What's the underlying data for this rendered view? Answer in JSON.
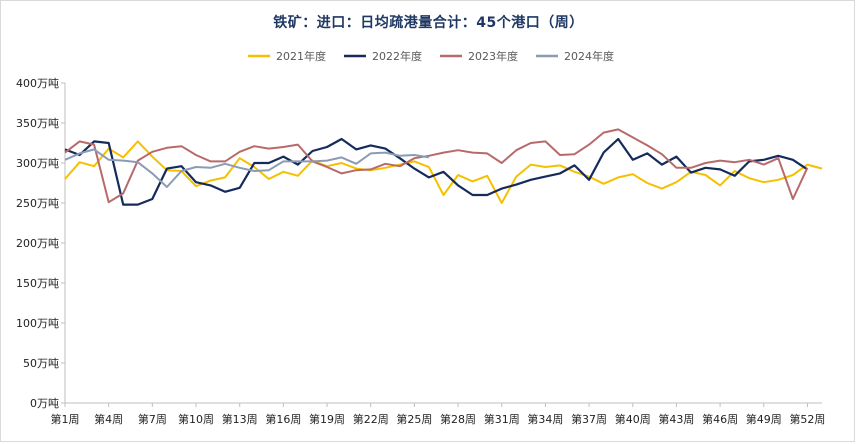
{
  "title": "铁矿：进口：日均疏港量合计：45个港口（周）",
  "colors": {
    "2021年度": "#f5c000",
    "2022年度": "#152b5c",
    "2023年度": "#b86a6a",
    "2024年度": "#8c9bb5",
    "axis": "#bfbfbf"
  },
  "chart_data": {
    "type": "line",
    "title": "铁矿：进口：日均疏港量合计：45个港口（周）",
    "xlabel": "",
    "ylabel": "",
    "ylim": [
      0,
      400
    ],
    "yticks": [
      "0万吨",
      "50万吨",
      "100万吨",
      "150万吨",
      "200万吨",
      "250万吨",
      "300万吨",
      "350万吨",
      "400万吨"
    ],
    "ytick_values": [
      0,
      50,
      100,
      150,
      200,
      250,
      300,
      350,
      400
    ],
    "x_range": [
      1,
      53
    ],
    "xticks": [
      "第1周",
      "第4周",
      "第7周",
      "第10周",
      "第13周",
      "第16周",
      "第19周",
      "第22周",
      "第25周",
      "第28周",
      "第31周",
      "第34周",
      "第37周",
      "第40周",
      "第43周",
      "第46周",
      "第49周",
      "第52周"
    ],
    "xtick_values": [
      1,
      4,
      7,
      10,
      13,
      16,
      19,
      22,
      25,
      28,
      31,
      34,
      37,
      40,
      43,
      46,
      49,
      52
    ],
    "grid": false,
    "legend_position": "top",
    "series": [
      {
        "name": "2021年度",
        "x": [
          1,
          2,
          3,
          4,
          5,
          6,
          7,
          8,
          9,
          10,
          11,
          12,
          13,
          14,
          15,
          16,
          17,
          18,
          19,
          20,
          21,
          22,
          23,
          24,
          25,
          26,
          27,
          28,
          29,
          30,
          31,
          32,
          33,
          34,
          35,
          36,
          37,
          38,
          39,
          40,
          41,
          42,
          43,
          44,
          45,
          46,
          47,
          48,
          49,
          50,
          51,
          52,
          53
        ],
        "values": [
          280,
          301,
          296,
          318,
          307,
          327,
          308,
          291,
          290,
          271,
          278,
          282,
          306,
          295,
          280,
          289,
          284,
          303,
          296,
          300,
          293,
          291,
          294,
          298,
          302,
          295,
          260,
          285,
          277,
          284,
          250,
          283,
          298,
          295,
          297,
          289,
          283,
          274,
          282,
          286,
          275,
          268,
          276,
          289,
          285,
          272,
          290,
          281,
          276,
          279,
          285,
          298,
          293
        ]
      },
      {
        "name": "2022年度",
        "x": [
          1,
          2,
          3,
          4,
          5,
          6,
          7,
          8,
          9,
          10,
          11,
          12,
          13,
          14,
          15,
          16,
          17,
          18,
          19,
          20,
          21,
          22,
          23,
          24,
          25,
          26,
          27,
          28,
          29,
          30,
          31,
          32,
          33,
          34,
          35,
          36,
          37,
          38,
          39,
          40,
          41,
          42,
          43,
          44,
          45,
          46,
          47,
          48,
          49,
          50,
          51,
          52
        ],
        "values": [
          317,
          310,
          327,
          325,
          248,
          248,
          255,
          293,
          296,
          276,
          272,
          264,
          269,
          300,
          300,
          308,
          298,
          315,
          320,
          330,
          317,
          322,
          318,
          306,
          293,
          282,
          289,
          272,
          260,
          260,
          268,
          273,
          279,
          283,
          287,
          297,
          279,
          313,
          330,
          304,
          312,
          298,
          308,
          288,
          294,
          292,
          284,
          302,
          304,
          309,
          304,
          292
        ]
      },
      {
        "name": "2023年度",
        "x": [
          1,
          2,
          3,
          4,
          5,
          6,
          7,
          8,
          9,
          10,
          11,
          12,
          13,
          14,
          15,
          16,
          17,
          18,
          19,
          20,
          21,
          22,
          23,
          24,
          25,
          26,
          27,
          28,
          29,
          30,
          31,
          32,
          33,
          34,
          35,
          36,
          37,
          38,
          39,
          40,
          41,
          42,
          43,
          44,
          45,
          46,
          47,
          48,
          49,
          50,
          51,
          52
        ],
        "values": [
          313,
          327,
          323,
          251,
          262,
          303,
          314,
          319,
          321,
          310,
          302,
          302,
          314,
          321,
          318,
          320,
          323,
          302,
          295,
          287,
          291,
          292,
          299,
          296,
          306,
          309,
          313,
          316,
          313,
          312,
          300,
          316,
          325,
          327,
          310,
          311,
          323,
          338,
          342,
          332,
          322,
          311,
          294,
          294,
          300,
          303,
          301,
          304,
          298,
          306,
          255,
          294
        ]
      },
      {
        "name": "2024年度",
        "x": [
          1,
          2,
          3,
          4,
          5,
          6,
          7,
          8,
          9,
          10,
          11,
          12,
          13,
          14,
          15,
          16,
          17,
          18,
          19,
          20,
          21,
          22,
          23,
          24,
          25,
          26
        ],
        "values": [
          304,
          312,
          317,
          304,
          303,
          301,
          287,
          270,
          290,
          295,
          294,
          299,
          294,
          290,
          291,
          302,
          302,
          302,
          303,
          307,
          299,
          312,
          313,
          309,
          310,
          307
        ]
      }
    ]
  }
}
